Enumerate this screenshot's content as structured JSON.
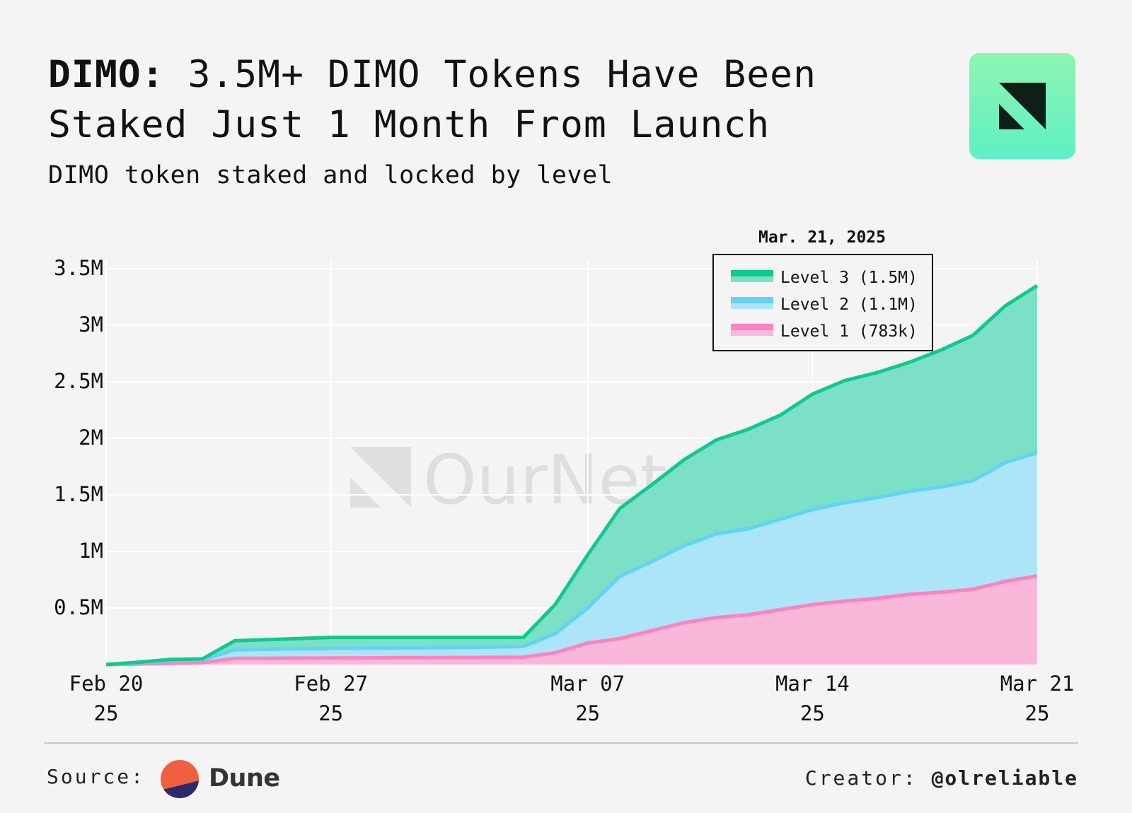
{
  "header": {
    "title_bold": "DIMO:",
    "title_rest": " 3.5M+ DIMO Tokens Have Been Staked Just 1 Month From Launch",
    "subtitle": "DIMO token staked and locked by level"
  },
  "watermark": "OurNetwork",
  "footer": {
    "source_label": "Source:",
    "source_name": "Dune",
    "creator_label": "Creator:",
    "creator_handle": "@olreliable"
  },
  "colors": {
    "level1_line": "#ff82c0",
    "level1_fill": "#f9b8d9",
    "level2_line": "#63d2f7",
    "level2_fill": "#abe5f7",
    "level3_line": "#11c98f",
    "level3_fill": "#7ce0c6",
    "grid": "#ffffff",
    "background": "#f4f4f4"
  },
  "chart_data": {
    "type": "area",
    "stacked": true,
    "x": [
      "2025-02-20",
      "2025-02-21",
      "2025-02-22",
      "2025-02-23",
      "2025-02-24",
      "2025-02-25",
      "2025-02-26",
      "2025-02-27",
      "2025-02-28",
      "2025-03-01",
      "2025-03-02",
      "2025-03-03",
      "2025-03-04",
      "2025-03-05",
      "2025-03-06",
      "2025-03-07",
      "2025-03-08",
      "2025-03-09",
      "2025-03-10",
      "2025-03-11",
      "2025-03-12",
      "2025-03-13",
      "2025-03-14",
      "2025-03-15",
      "2025-03-16",
      "2025-03-17",
      "2025-03-18",
      "2025-03-19",
      "2025-03-20",
      "2025-03-21"
    ],
    "x_ticks": [
      {
        "date": "2025-02-20",
        "line1": "Feb 20",
        "line2": "25"
      },
      {
        "date": "2025-02-27",
        "line1": "Feb 27",
        "line2": "25"
      },
      {
        "date": "2025-03-07",
        "line1": "Mar 07",
        "line2": "25"
      },
      {
        "date": "2025-03-14",
        "line1": "Mar 14",
        "line2": "25"
      },
      {
        "date": "2025-03-21",
        "line1": "Mar 21",
        "line2": "25"
      }
    ],
    "y_ticks": [
      {
        "value": 500000,
        "label": "0.5M"
      },
      {
        "value": 1000000,
        "label": "1M"
      },
      {
        "value": 1500000,
        "label": "1.5M"
      },
      {
        "value": 2000000,
        "label": "2M"
      },
      {
        "value": 2500000,
        "label": "2.5M"
      },
      {
        "value": 3000000,
        "label": "3M"
      },
      {
        "value": 3500000,
        "label": "3.5M"
      }
    ],
    "ylim": [
      0,
      3500000
    ],
    "grid": true,
    "legend_position": "top-right",
    "legend_title": "Mar. 21, 2025",
    "series": [
      {
        "name": "Level 1",
        "legend_label": "Level 1 (783k)",
        "color_key": "level1",
        "values": [
          0,
          5000,
          10000,
          15000,
          55000,
          55000,
          57000,
          58000,
          59000,
          60000,
          61000,
          62000,
          63000,
          65000,
          105000,
          190000,
          230000,
          300000,
          370000,
          415000,
          440000,
          485000,
          530000,
          560000,
          585000,
          620000,
          640000,
          665000,
          735000,
          783000
        ]
      },
      {
        "name": "Level 2",
        "legend_label": "Level 2 (1.1M)",
        "color_key": "level2",
        "values": [
          0,
          10000,
          25000,
          25000,
          75000,
          80000,
          82000,
          85000,
          86000,
          87000,
          88000,
          90000,
          91000,
          95000,
          170000,
          310000,
          550000,
          610000,
          680000,
          740000,
          760000,
          800000,
          840000,
          870000,
          890000,
          910000,
          930000,
          960000,
          1050000,
          1090000
        ]
      },
      {
        "name": "Level 3",
        "legend_label": "Level 3 (1.5M)",
        "color_key": "level3",
        "values": [
          0,
          5000,
          10000,
          10000,
          80000,
          85000,
          91000,
          97000,
          95000,
          93000,
          91000,
          88000,
          86000,
          80000,
          260000,
          470000,
          600000,
          680000,
          760000,
          830000,
          880000,
          920000,
          1020000,
          1080000,
          1105000,
          1140000,
          1210000,
          1285000,
          1385000,
          1477000
        ]
      }
    ]
  }
}
